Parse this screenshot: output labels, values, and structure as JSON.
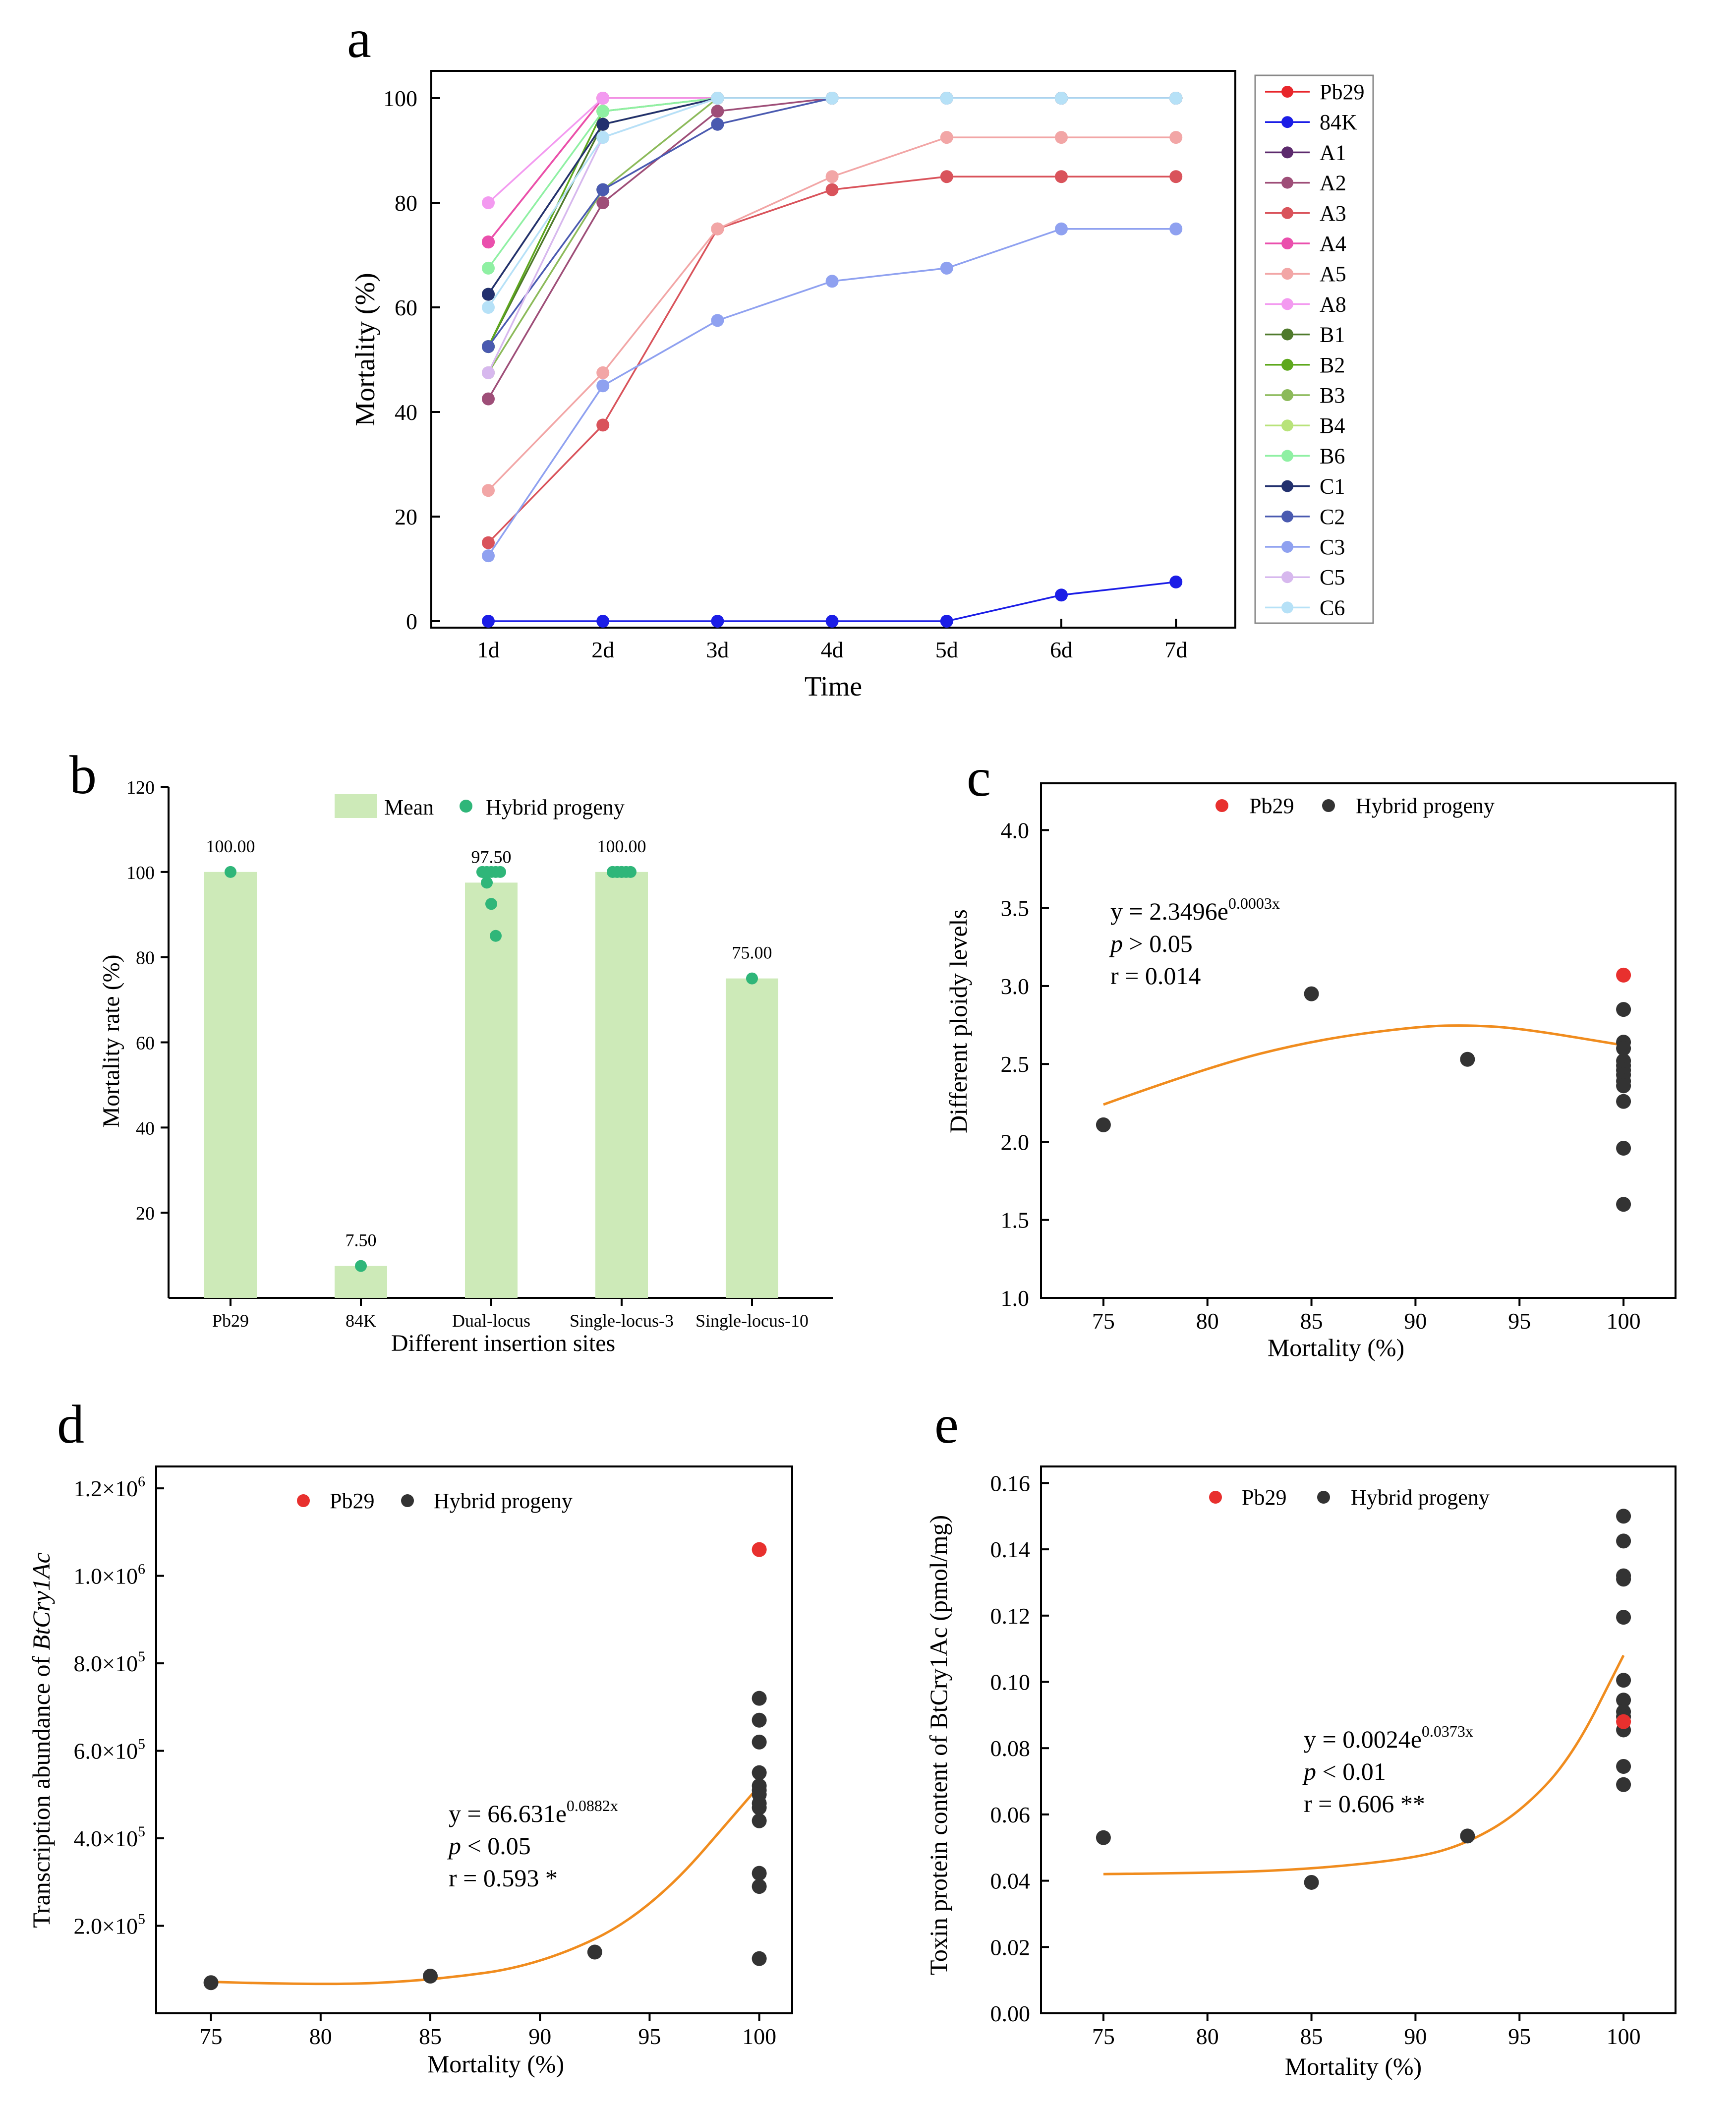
{
  "figure": {
    "panels": [
      "a",
      "b",
      "c",
      "d",
      "e"
    ]
  },
  "chart_data": [
    {
      "id": "a",
      "type": "line",
      "xlabel": "Time",
      "ylabel": "Mortality (%)",
      "categories": [
        "1d",
        "2d",
        "3d",
        "4d",
        "5d",
        "6d",
        "7d"
      ],
      "ylim": [
        0,
        100
      ],
      "yticks": [
        "0",
        "20",
        "40",
        "60",
        "80",
        "100"
      ],
      "series": [
        {
          "name": "Pb29",
          "color": "#e8262b",
          "values": [
            72.5,
            100,
            100,
            100,
            100,
            100,
            100
          ]
        },
        {
          "name": "84K",
          "color": "#1b1de6",
          "values": [
            0,
            0,
            0,
            0,
            0,
            5,
            7.5
          ]
        },
        {
          "name": "A1",
          "color": "#5c2a6d",
          "values": [
            62.5,
            95,
            100,
            100,
            100,
            100,
            100
          ]
        },
        {
          "name": "A2",
          "color": "#9e4e78",
          "values": [
            42.5,
            80,
            97.5,
            100,
            100,
            100,
            100
          ]
        },
        {
          "name": "A3",
          "color": "#d9535b",
          "values": [
            15,
            37.5,
            75,
            82.5,
            85,
            85,
            85
          ]
        },
        {
          "name": "A4",
          "color": "#ea4fad",
          "values": [
            72.5,
            100,
            100,
            100,
            100,
            100,
            100
          ]
        },
        {
          "name": "A5",
          "color": "#f2a6a6",
          "values": [
            25,
            47.5,
            75,
            85,
            92.5,
            92.5,
            92.5
          ]
        },
        {
          "name": "A8",
          "color": "#f39af0",
          "values": [
            80,
            100,
            100,
            100,
            100,
            100,
            100
          ]
        },
        {
          "name": "B1",
          "color": "#4f7a2c",
          "values": [
            52.5,
            95,
            100,
            100,
            100,
            100,
            100
          ]
        },
        {
          "name": "B2",
          "color": "#5ea81d",
          "values": [
            52.5,
            97.5,
            100,
            100,
            100,
            100,
            100
          ]
        },
        {
          "name": "B3",
          "color": "#8cba5a",
          "values": [
            47.5,
            82.5,
            100,
            100,
            100,
            100,
            100
          ]
        },
        {
          "name": "B4",
          "color": "#b8e37a",
          "values": [
            62.5,
            95,
            100,
            100,
            100,
            100,
            100
          ]
        },
        {
          "name": "B6",
          "color": "#8ff0a3",
          "values": [
            67.5,
            97.5,
            100,
            100,
            100,
            100,
            100
          ]
        },
        {
          "name": "C1",
          "color": "#22306e",
          "values": [
            62.5,
            95,
            100,
            100,
            100,
            100,
            100
          ]
        },
        {
          "name": "C2",
          "color": "#4a5ab0",
          "values": [
            52.5,
            82.5,
            95,
            100,
            100,
            100,
            100
          ]
        },
        {
          "name": "C3",
          "color": "#8fa1f0",
          "values": [
            12.5,
            45,
            57.5,
            65,
            67.5,
            75,
            75
          ]
        },
        {
          "name": "C5",
          "color": "#d7b8ee",
          "values": [
            47.5,
            92.5,
            100,
            100,
            100,
            100,
            100
          ]
        },
        {
          "name": "C6",
          "color": "#b6e1f7",
          "values": [
            60,
            92.5,
            100,
            100,
            100,
            100,
            100
          ]
        }
      ]
    },
    {
      "id": "b",
      "type": "bar",
      "xlabel": "Different insertion sites",
      "ylabel": "Mortality rate (%)",
      "categories": [
        "Pb29",
        "84K",
        "Dual-locus",
        "Single-locus-3",
        "Single-locus-10"
      ],
      "values": [
        100,
        7.5,
        97.5,
        100,
        75
      ],
      "value_labels": [
        "100.00",
        "7.50",
        "97.50",
        "100.00",
        "75.00"
      ],
      "ylim": [
        0,
        120
      ],
      "yticks": [
        "20",
        "40",
        "60",
        "80",
        "100",
        "120"
      ],
      "legend": [
        "Mean",
        "Hybrid progeny"
      ],
      "bar_color": "#cdeab8",
      "point_color": "#2fb679",
      "points": [
        [
          100
        ],
        [
          7.5
        ],
        [
          100,
          100,
          100,
          100,
          100,
          100,
          97.5,
          92.5,
          85
        ],
        [
          100,
          100,
          100,
          100,
          100,
          100,
          100,
          100
        ],
        [
          75
        ]
      ]
    },
    {
      "id": "c",
      "type": "scatter",
      "xlabel": "Mortality (%)",
      "ylabel": "Different ploidy levels",
      "xlim": [
        72,
        102.5
      ],
      "ylim": [
        1.0,
        4.3
      ],
      "xticks": [
        "75",
        "80",
        "85",
        "90",
        "95",
        "100"
      ],
      "yticks": [
        "1.0",
        "1.5",
        "2.0",
        "2.5",
        "3.0",
        "3.5",
        "4.0"
      ],
      "legend": [
        "Pb29",
        "Hybrid progeny"
      ],
      "equation_base": "y = 2.3496e",
      "equation_exp": "0.0003x",
      "p_label": "p",
      "p_value": " > 0.05",
      "r_label": "r = 0.014",
      "pb29": [
        [
          100,
          3.07
        ]
      ],
      "progeny": [
        [
          75,
          2.11
        ],
        [
          85,
          2.95
        ],
        [
          92.5,
          2.53
        ],
        [
          100,
          2.85
        ],
        [
          100,
          2.64
        ],
        [
          100,
          2.6
        ],
        [
          100,
          2.52
        ],
        [
          100,
          2.49
        ],
        [
          100,
          2.46
        ],
        [
          100,
          2.43
        ],
        [
          100,
          2.39
        ],
        [
          100,
          2.36
        ],
        [
          100,
          2.26
        ],
        [
          100,
          1.96
        ],
        [
          100,
          1.6
        ]
      ],
      "fit_curve": [
        [
          75,
          2.24
        ],
        [
          80,
          2.48
        ],
        [
          85,
          2.65
        ],
        [
          90,
          2.74
        ],
        [
          92.5,
          2.75
        ],
        [
          95,
          2.73
        ],
        [
          100,
          2.62
        ]
      ]
    },
    {
      "id": "d",
      "type": "scatter",
      "xlabel": "Mortality (%)",
      "ylabel_prefix": "Transcription abundance of ",
      "ylabel_gene": "BtCry1Ac",
      "xlim": [
        72.5,
        101.5
      ],
      "ylim": [
        0,
        1250000
      ],
      "xticks": [
        "75",
        "80",
        "85",
        "90",
        "95",
        "100"
      ],
      "ytick_mantissas": [
        "2.0×10",
        "4.0×10",
        "6.0×10",
        "8.0×10",
        "1.0×10",
        "1.2×10"
      ],
      "ytick_exponents": [
        "5",
        "5",
        "5",
        "5",
        "6",
        "6"
      ],
      "legend": [
        "Pb29",
        "Hybrid progeny"
      ],
      "equation_base": "y = 66.631e",
      "equation_exp": "0.0882x",
      "p_label": "p",
      "p_value": " < 0.05",
      "r_label": "r = 0.593 *",
      "pb29": [
        [
          100,
          1060000
        ]
      ],
      "progeny": [
        [
          75,
          70000
        ],
        [
          85,
          85000
        ],
        [
          92.5,
          140000
        ],
        [
          100,
          720000
        ],
        [
          100,
          670000
        ],
        [
          100,
          620000
        ],
        [
          100,
          550000
        ],
        [
          100,
          520000
        ],
        [
          100,
          510000
        ],
        [
          100,
          500000
        ],
        [
          100,
          480000
        ],
        [
          100,
          470000
        ],
        [
          100,
          440000
        ],
        [
          100,
          320000
        ],
        [
          100,
          290000
        ],
        [
          100,
          125000
        ]
      ],
      "fit_curve": [
        [
          75,
          72000
        ],
        [
          80,
          64000
        ],
        [
          85,
          75000
        ],
        [
          90,
          110000
        ],
        [
          95,
          230000
        ],
        [
          100,
          520000
        ]
      ]
    },
    {
      "id": "e",
      "type": "scatter",
      "xlabel": "Mortality (%)",
      "ylabel": "Toxin protein content of  BtCry1Ac (pmol/mg)",
      "xlim": [
        72,
        102.5
      ],
      "ylim": [
        0,
        0.165
      ],
      "xticks": [
        "75",
        "80",
        "85",
        "90",
        "95",
        "100"
      ],
      "yticks": [
        "0.00",
        "0.02",
        "0.04",
        "0.06",
        "0.08",
        "0.10",
        "0.12",
        "0.14",
        "0.16"
      ],
      "legend": [
        "Pb29",
        "Hybrid progeny"
      ],
      "equation_base": "y = 0.0024e",
      "equation_exp": "0.0373x",
      "p_label": "p",
      "p_value": " < 0.01",
      "r_label": "r = 0.606 **",
      "pb29": [
        [
          100,
          0.088
        ]
      ],
      "progeny": [
        [
          75,
          0.053
        ],
        [
          85,
          0.0395
        ],
        [
          92.5,
          0.0535
        ],
        [
          100,
          0.15
        ],
        [
          100,
          0.1425
        ],
        [
          100,
          0.132
        ],
        [
          100,
          0.131
        ],
        [
          100,
          0.1195
        ],
        [
          100,
          0.1005
        ],
        [
          100,
          0.0945
        ],
        [
          100,
          0.091
        ],
        [
          100,
          0.0895
        ],
        [
          100,
          0.0855
        ],
        [
          100,
          0.0745
        ],
        [
          100,
          0.069
        ]
      ],
      "fit_curve": [
        [
          75,
          0.042
        ],
        [
          80,
          0.0423
        ],
        [
          85,
          0.0435
        ],
        [
          90,
          0.0468
        ],
        [
          92.5,
          0.0513
        ],
        [
          95,
          0.0605
        ],
        [
          97.5,
          0.077
        ],
        [
          100,
          0.108
        ]
      ]
    }
  ]
}
